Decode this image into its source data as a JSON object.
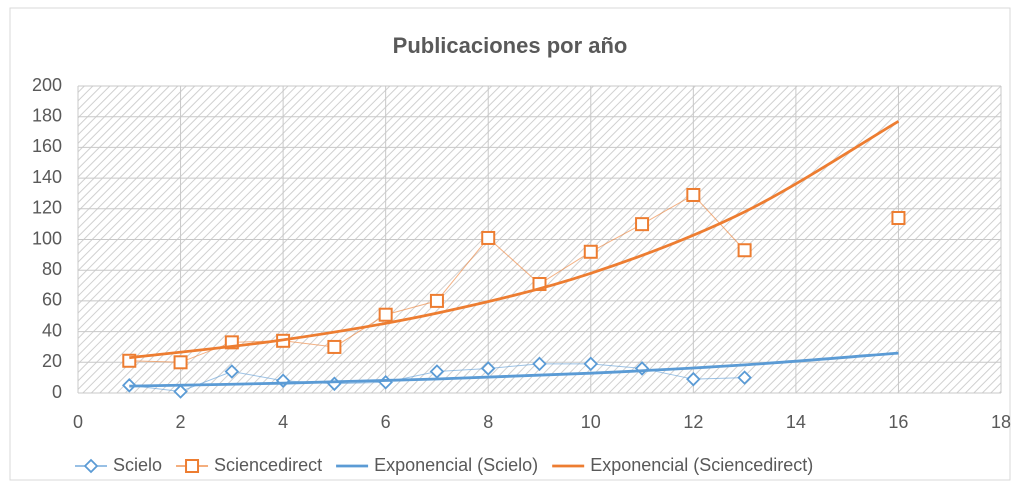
{
  "chart_data": {
    "type": "line",
    "title": "Publicaciones por año",
    "xlim": [
      0,
      18
    ],
    "xticks": [
      0,
      2,
      4,
      6,
      8,
      10,
      12,
      14,
      16,
      18
    ],
    "ylim": [
      0,
      200
    ],
    "yticks": [
      0,
      20,
      40,
      60,
      80,
      100,
      120,
      140,
      160,
      180,
      200
    ],
    "grid": true,
    "legend": "bottom",
    "series": [
      {
        "name": "Scielo",
        "color": "#5b9bd5",
        "marker": "diamond",
        "x": [
          1,
          2,
          3,
          4,
          5,
          6,
          7,
          8,
          9,
          10,
          11,
          12,
          13
        ],
        "values": [
          5,
          1,
          14,
          8,
          6,
          7,
          14,
          16,
          19,
          19,
          16,
          9,
          10
        ]
      },
      {
        "name": "Sciencedirect",
        "color": "#ed7d31",
        "marker": "square",
        "x": [
          1,
          2,
          3,
          4,
          5,
          6,
          7,
          8,
          9,
          10,
          11,
          12,
          13,
          14,
          15,
          16
        ],
        "values": [
          21,
          20,
          33,
          34,
          30,
          51,
          60,
          101,
          71,
          92,
          110,
          129,
          93,
          null,
          null,
          114
        ]
      },
      {
        "name": "Exponencial (Scielo)",
        "color": "#5b9bd5",
        "marker": null,
        "x": [
          1,
          4,
          7,
          10,
          13,
          16
        ],
        "values": [
          4.5,
          6.4,
          9.1,
          12.9,
          18.3,
          26
        ]
      },
      {
        "name": "Exponencial (Sciencedirect)",
        "color": "#ed7d31",
        "marker": null,
        "x": [
          1,
          4,
          7,
          10,
          13,
          16
        ],
        "values": [
          23,
          34.6,
          52,
          78,
          118,
          177
        ]
      }
    ]
  }
}
